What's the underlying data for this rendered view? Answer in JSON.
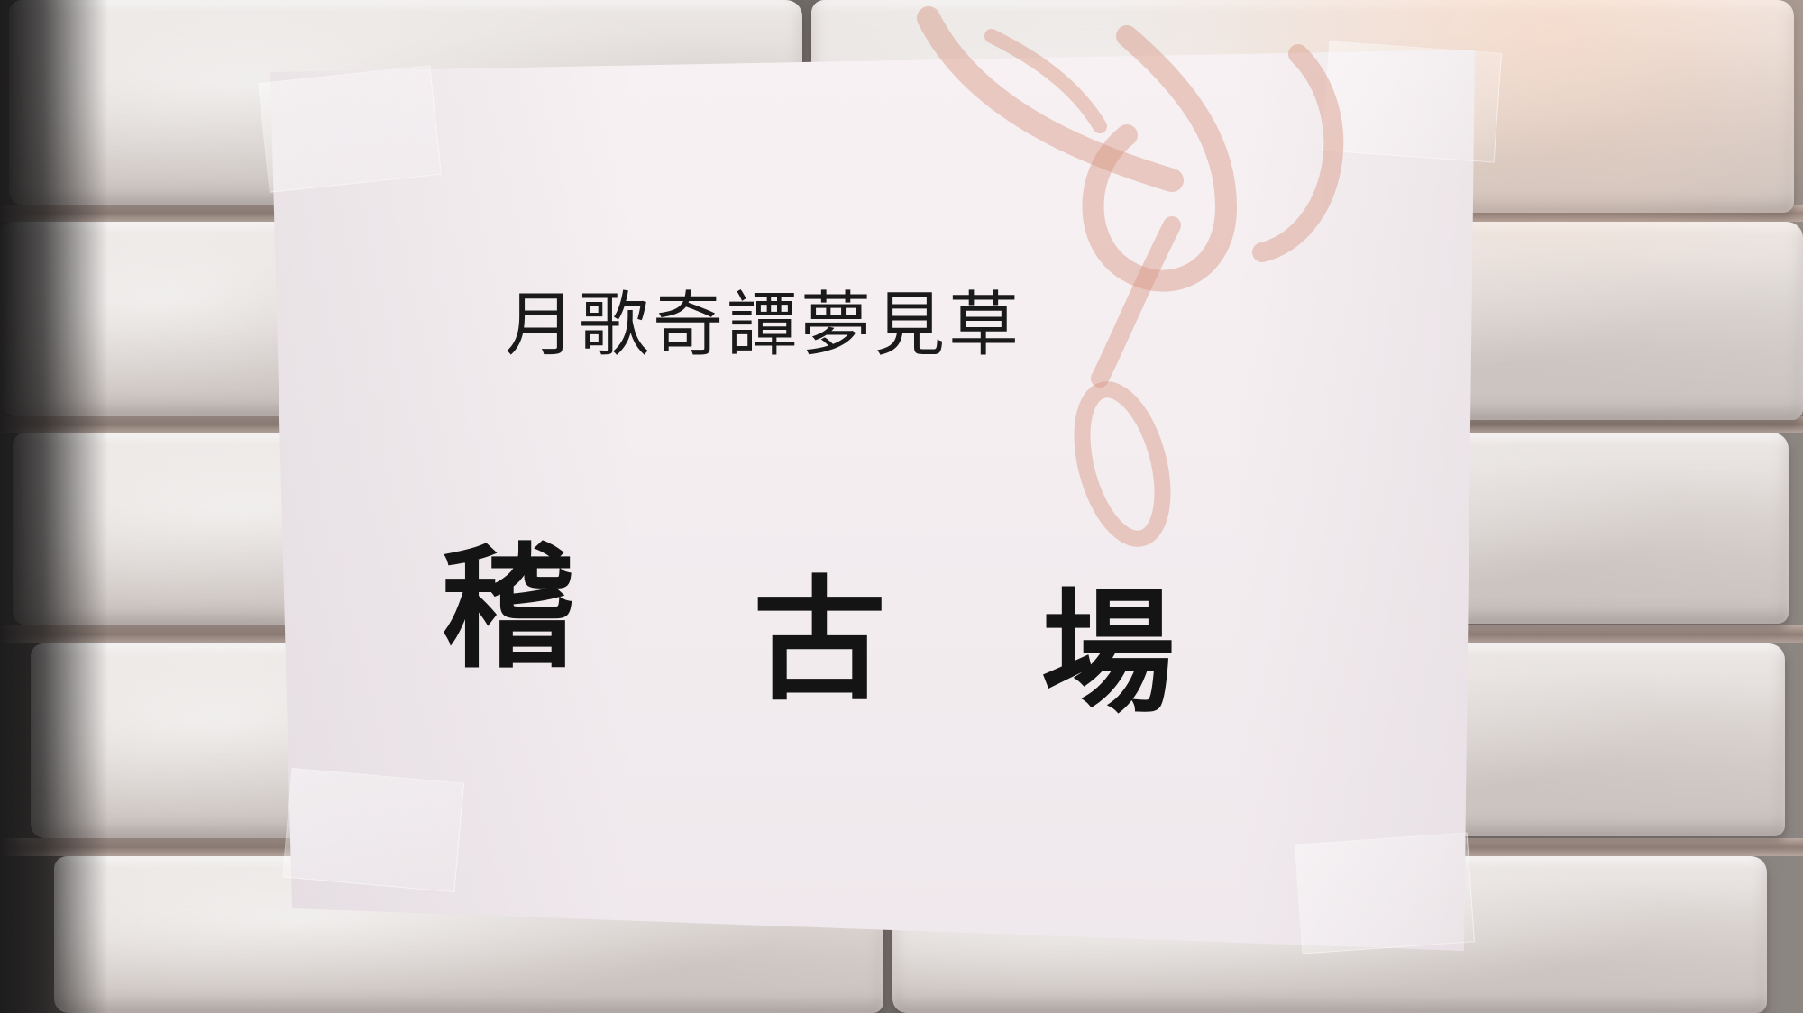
{
  "sign": {
    "subtitle": "月歌奇譚夢見草",
    "heading": [
      "稽",
      "古",
      "場"
    ]
  }
}
